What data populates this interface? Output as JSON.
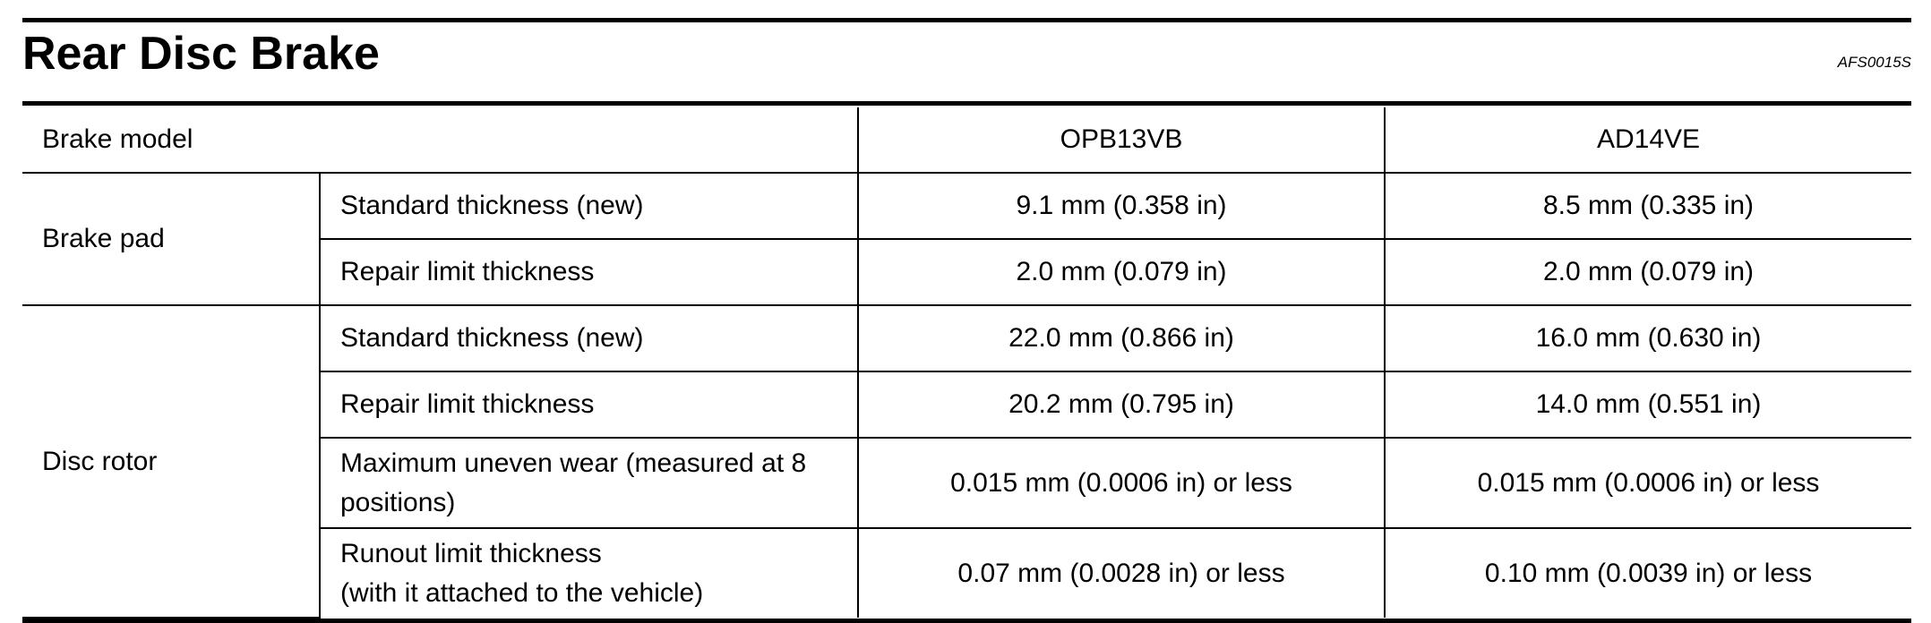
{
  "header": {
    "title": "Rear Disc Brake",
    "code": "AFS0015S"
  },
  "table": {
    "columns": [
      "Brake model",
      "OPB13VB",
      "AD14VE"
    ],
    "groups": [
      {
        "label": "Brake pad",
        "rows": [
          {
            "item": "Standard thickness (new)",
            "values": [
              "9.1 mm (0.358 in)",
              "8.5 mm (0.335 in)"
            ]
          },
          {
            "item": "Repair limit thickness",
            "values": [
              "2.0 mm (0.079 in)",
              "2.0 mm (0.079 in)"
            ]
          }
        ]
      },
      {
        "label": "Disc rotor",
        "rows": [
          {
            "item": "Standard thickness (new)",
            "values": [
              "22.0 mm (0.866 in)",
              "16.0 mm (0.630 in)"
            ]
          },
          {
            "item": "Repair limit thickness",
            "values": [
              "20.2 mm (0.795 in)",
              "14.0 mm (0.551 in)"
            ]
          },
          {
            "item": "Maximum uneven wear (measured at 8 positions)",
            "values": [
              "0.015 mm (0.0006 in) or less",
              "0.015 mm (0.0006 in) or less"
            ]
          },
          {
            "item": "Runout limit thickness\n(with it attached to the vehicle)",
            "values": [
              "0.07 mm (0.0028 in) or less",
              "0.10 mm (0.0039 in) or less"
            ]
          }
        ]
      }
    ]
  }
}
